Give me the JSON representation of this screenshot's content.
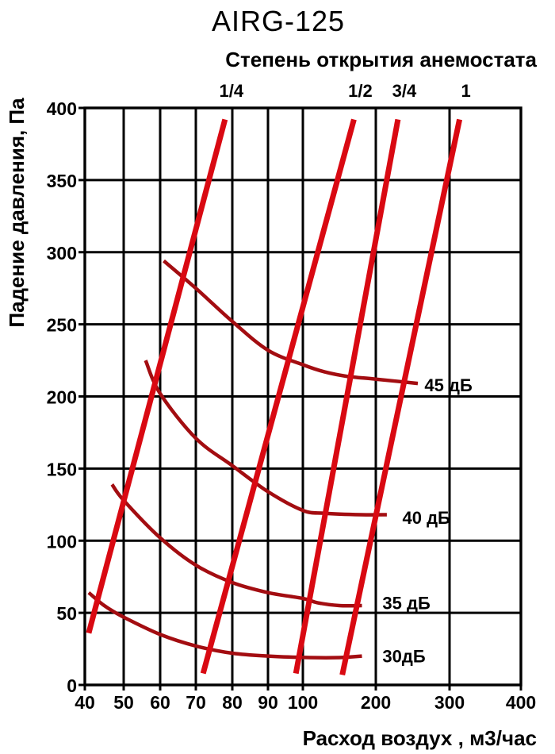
{
  "chart_data": {
    "type": "line",
    "title": "AIRG-125",
    "top_axis_title": "Степень открытия анемостата",
    "xlabel": "Расход воздух , м3/час",
    "ylabel": "Падение давления, Па",
    "x_axis": {
      "ticks": [
        40,
        50,
        60,
        70,
        80,
        90,
        100,
        200,
        300,
        400
      ],
      "range": [
        40,
        400
      ],
      "scale": "quasi-log: steps 40-100 equally spaced, steps 100-400 equally spaced"
    },
    "y_axis": {
      "ticks": [
        0,
        50,
        100,
        150,
        200,
        250,
        300,
        350,
        400
      ],
      "range": [
        0,
        400
      ],
      "unit": "Па"
    },
    "grid": "on",
    "legend_position": "inline labels at line ends",
    "colors": {
      "opening_lines": "#d90912",
      "noise_curves": "#a30d11",
      "grid": "#000000",
      "text": "#000000",
      "background": "#ffffff"
    },
    "opening_lines": [
      {
        "label": "1/4",
        "points": [
          [
            41,
            36
          ],
          [
            78,
            392
          ]
        ]
      },
      {
        "label": "1/2",
        "points": [
          [
            72,
            8
          ],
          [
            170,
            392
          ]
        ]
      },
      {
        "label": "3/4",
        "points": [
          [
            98,
            8
          ],
          [
            230,
            392
          ]
        ]
      },
      {
        "label": "1",
        "points": [
          [
            154,
            7
          ],
          [
            314,
            392
          ]
        ]
      }
    ],
    "noise_curves": [
      {
        "label": "30дБ",
        "label_at": [
          209,
          20
        ],
        "points": [
          [
            41,
            64
          ],
          [
            45,
            55
          ],
          [
            50,
            47
          ],
          [
            60,
            35
          ],
          [
            70,
            27
          ],
          [
            80,
            22
          ],
          [
            90,
            20
          ],
          [
            110,
            19
          ],
          [
            150,
            19
          ],
          [
            181,
            20
          ]
        ]
      },
      {
        "label": "35 дБ",
        "label_at": [
          209,
          57
        ],
        "points": [
          [
            47,
            139
          ],
          [
            50,
            128
          ],
          [
            60,
            102
          ],
          [
            70,
            83
          ],
          [
            80,
            71
          ],
          [
            90,
            64
          ],
          [
            100,
            60
          ],
          [
            120,
            57
          ],
          [
            150,
            55
          ],
          [
            181,
            55
          ]
        ]
      },
      {
        "label": "40 дБ",
        "label_at": [
          236,
          116
        ],
        "points": [
          [
            56,
            225
          ],
          [
            60,
            202
          ],
          [
            70,
            171
          ],
          [
            80,
            152
          ],
          [
            90,
            134
          ],
          [
            100,
            121
          ],
          [
            130,
            119
          ],
          [
            180,
            118
          ],
          [
            215,
            118
          ]
        ]
      },
      {
        "label": "45 дБ",
        "label_at": [
          266,
          208
        ],
        "points": [
          [
            61,
            294
          ],
          [
            70,
            275
          ],
          [
            80,
            252
          ],
          [
            90,
            232
          ],
          [
            100,
            222
          ],
          [
            130,
            217
          ],
          [
            160,
            214
          ],
          [
            200,
            212
          ],
          [
            257,
            209
          ]
        ]
      }
    ]
  }
}
